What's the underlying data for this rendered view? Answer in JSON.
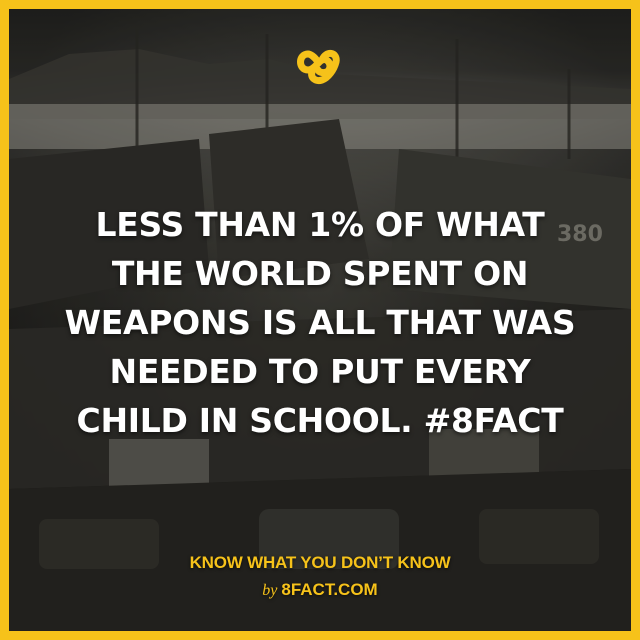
{
  "fact": {
    "lines": [
      "LESS THAN 1% OF WHAT",
      "THE WORLD SPENT ON",
      "WEAPONS IS ALL THAT WAS",
      "NEEDED TO PUT EVERY",
      "CHILD IN SCHOOL. #8FACT"
    ]
  },
  "footer": {
    "tagline": "KNOW WHAT YOU DON’T KNOW",
    "by": "by",
    "site": "8FACT.COM"
  },
  "photo": {
    "hull_number": "380"
  },
  "colors": {
    "brand_yellow": "#f6c21a",
    "text_white": "#ffffff"
  },
  "icons": {
    "logo": "infinity-eight-logo-icon"
  }
}
